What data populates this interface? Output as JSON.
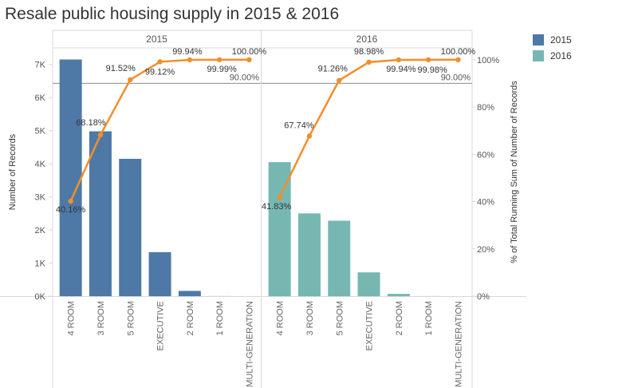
{
  "title": "Resale public housing supply in 2015 & 2016",
  "legend": [
    {
      "label": "2015",
      "color": "#4e79a7"
    },
    {
      "label": "2016",
      "color": "#76b7b2"
    }
  ],
  "line_color": "#f28e2b",
  "chart_data": {
    "type": "bar",
    "categories": [
      "4 ROOM",
      "3 ROOM",
      "5 ROOM",
      "EXECUTIVE",
      "2 ROOM",
      "1 ROOM",
      "MULTI-GENERATION"
    ],
    "series": [
      {
        "name": "2015",
        "values": [
          7150,
          4980,
          4150,
          1330,
          160,
          3,
          1
        ],
        "running_pct": [
          40.16,
          68.18,
          91.52,
          99.12,
          99.94,
          99.99,
          100.0
        ],
        "pct_labels": [
          "40.16%",
          "68.18%",
          "91.52%",
          "99.12%",
          "99.94%",
          "99.99%",
          "100.00%"
        ]
      },
      {
        "name": "2016",
        "values": [
          4050,
          2500,
          2280,
          720,
          70,
          3,
          1
        ],
        "running_pct": [
          41.83,
          67.74,
          91.26,
          98.98,
          99.94,
          99.98,
          100.0
        ],
        "pct_labels": [
          "41.83%",
          "67.74%",
          "91.26%",
          "98.98%",
          "99.94%",
          "99.98%",
          "100.00%"
        ]
      }
    ],
    "panels": [
      "2015",
      "2016"
    ],
    "ylabel": "Number of Records",
    "y2label": "% of Total Running Sum of Number of Records",
    "ylim": [
      0,
      7500
    ],
    "y_ticks": [
      0,
      1000,
      2000,
      3000,
      4000,
      5000,
      6000,
      7000
    ],
    "y_tick_labels": [
      "0K",
      "1K",
      "2K",
      "3K",
      "4K",
      "5K",
      "6K",
      "7K"
    ],
    "y2lim": [
      0,
      105
    ],
    "y2_ticks": [
      0,
      20,
      40,
      60,
      80,
      100
    ],
    "y2_tick_labels": [
      "0%",
      "20%",
      "40%",
      "60%",
      "80%",
      "100%"
    ],
    "reference_line": {
      "value": 90,
      "label": "90.00%"
    }
  }
}
